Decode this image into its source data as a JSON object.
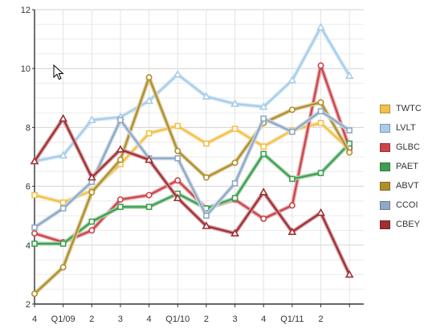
{
  "chart_data": {
    "type": "line",
    "x": [
      "4",
      "Q1/09",
      "2",
      "3",
      "4",
      "Q1/10",
      "2",
      "3",
      "4",
      "Q1/11",
      "2",
      ""
    ],
    "ylim": [
      2,
      12
    ],
    "yticks": [
      "2",
      "4",
      "6",
      "8",
      "10",
      "12"
    ],
    "grid": true,
    "legend_placement": "right",
    "series": [
      {
        "name": "TWTC",
        "color": "#f2c14a",
        "marker": "square",
        "values": [
          5.7,
          5.45,
          5.85,
          6.75,
          7.8,
          8.05,
          7.45,
          7.95,
          7.35,
          7.9,
          8.15,
          7.25
        ]
      },
      {
        "name": "LVLT",
        "color": "#a8cde8",
        "marker": "triangle",
        "values": [
          6.85,
          7.05,
          8.25,
          8.35,
          8.9,
          9.8,
          9.05,
          8.8,
          8.7,
          9.6,
          11.4,
          9.75
        ]
      },
      {
        "name": "GLBC",
        "color": "#c9454b",
        "marker": "circle",
        "values": [
          4.4,
          4.1,
          4.5,
          5.55,
          5.7,
          6.2,
          5.25,
          5.55,
          4.9,
          5.35,
          10.1,
          7.3
        ]
      },
      {
        "name": "PAET",
        "color": "#3e9f50",
        "marker": "square",
        "values": [
          4.05,
          4.05,
          4.8,
          5.3,
          5.3,
          5.75,
          5.25,
          5.6,
          7.1,
          6.25,
          6.45,
          7.45
        ]
      },
      {
        "name": "ABVT",
        "color": "#b08e2a",
        "marker": "circle",
        "values": [
          2.35,
          3.25,
          5.8,
          6.9,
          9.7,
          7.2,
          6.3,
          6.8,
          8.15,
          8.6,
          8.85,
          7.15
        ]
      },
      {
        "name": "CCOI",
        "color": "#8ea9c5",
        "marker": "square",
        "values": [
          4.6,
          5.25,
          6.15,
          8.25,
          6.95,
          6.95,
          5.0,
          6.1,
          8.3,
          7.85,
          8.55,
          7.9
        ]
      },
      {
        "name": "CBEY",
        "color": "#9e2f32",
        "marker": "triangle",
        "values": [
          6.85,
          8.3,
          6.3,
          7.25,
          6.9,
          5.6,
          4.65,
          4.4,
          5.8,
          4.45,
          5.1,
          3.0
        ]
      }
    ]
  }
}
